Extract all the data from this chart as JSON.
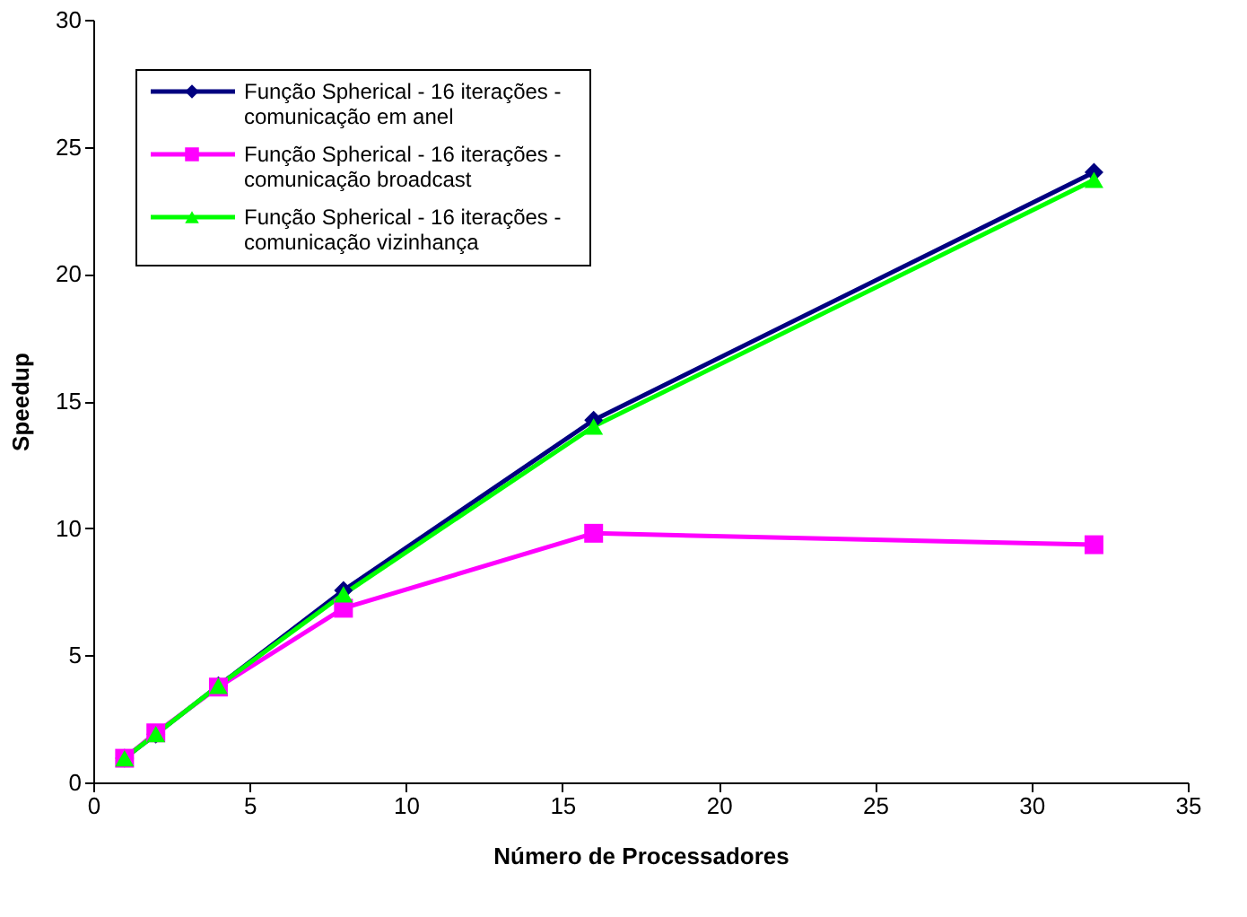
{
  "chart_data": {
    "type": "line",
    "xlabel": "Número de Processadores",
    "ylabel": "Speedup",
    "x": [
      1,
      2,
      4,
      8,
      16,
      32
    ],
    "series": [
      {
        "name": "Função Spherical - 16 iterações - comunicação em anel",
        "color": "#000080",
        "marker": "diamond",
        "values": [
          0.95,
          1.9,
          3.8,
          7.55,
          14.25,
          24.0
        ]
      },
      {
        "name": "Função Spherical - 16 iterações - comunicação broadcast",
        "color": "#ff00ff",
        "marker": "square",
        "values": [
          0.95,
          1.95,
          3.75,
          6.85,
          9.8,
          9.35
        ]
      },
      {
        "name": "Função Spherical - 16 iterações - comunicação vizinhança",
        "color": "#00ff00",
        "marker": "triangle",
        "values": [
          0.95,
          1.9,
          3.8,
          7.4,
          14.0,
          23.7
        ]
      }
    ],
    "xlim": [
      0,
      35
    ],
    "xticks": [
      0,
      5,
      10,
      15,
      20,
      25,
      30,
      35
    ],
    "ylim": [
      0,
      30
    ],
    "yticks": [
      0,
      5,
      10,
      15,
      20,
      25,
      30
    ],
    "grid": false,
    "legend": "top left",
    "line_style": "solid"
  }
}
